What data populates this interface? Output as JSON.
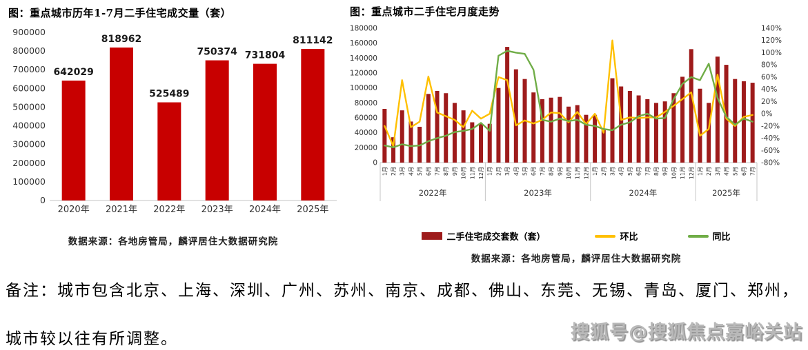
{
  "note": {
    "line1": "备注：城市包含北京、上海、深圳、广州、苏州、南京、成都、佛山、东莞、无锡、青岛、厦门、郑州，",
    "line2": "城市较以往有所调整。"
  },
  "watermark": "搜狐号@搜狐焦点嘉峪关站",
  "chart_data": [
    {
      "type": "bar",
      "title": "图：重点城市历年1-7月二手住宅成交量（套）",
      "source": "数据来源：各地房管局，麟评居住大数据研究院",
      "categories": [
        "2020年",
        "2021年",
        "2022年",
        "2023年",
        "2024年",
        "2025年"
      ],
      "values": [
        642029,
        818962,
        525489,
        750374,
        731804,
        811142
      ],
      "value_labels": true,
      "grid": false,
      "xlabel": "",
      "ylabel": "",
      "ylim": [
        0,
        900000
      ],
      "ytick_step": 100000,
      "bar_color": "#C80000"
    },
    {
      "type": "combo",
      "title": "图：重点城市二手住宅月度走势",
      "source": "数据来源：各地房管局，麟评居住大数据研究院",
      "legend_position": "bottom",
      "grid": false,
      "year_groups": [
        {
          "label": "2022年",
          "count": 12
        },
        {
          "label": "2023年",
          "count": 12
        },
        {
          "label": "2024年",
          "count": 12
        },
        {
          "label": "2025年",
          "count": 7
        }
      ],
      "categories": [
        "1月",
        "2月",
        "3月",
        "4月",
        "5月",
        "6月",
        "7月",
        "8月",
        "9月",
        "10月",
        "11月",
        "12月",
        "1月",
        "2月",
        "3月",
        "4月",
        "5月",
        "6月",
        "7月",
        "8月",
        "9月",
        "10月",
        "11月",
        "12月",
        "1月",
        "2月",
        "3月",
        "4月",
        "5月",
        "6月",
        "7月",
        "8月",
        "9月",
        "10月",
        "11月",
        "12月",
        "1月",
        "2月",
        "3月",
        "4月",
        "5月",
        "6月",
        "7月"
      ],
      "left_axis": {
        "min": 0,
        "max": 180000,
        "step": 20000
      },
      "right_axis": {
        "min": -80,
        "max": 140,
        "step": 20,
        "unit": "%"
      },
      "series": [
        {
          "name": "二手住宅成交套数（套）",
          "type": "bar",
          "axis": "left",
          "color": "#9E1B1B",
          "values": [
            72000,
            34000,
            70000,
            55000,
            48000,
            92000,
            96000,
            93000,
            80000,
            70000,
            54000,
            52000,
            52000,
            100000,
            155000,
            125000,
            112000,
            94000,
            85000,
            87000,
            88000,
            75000,
            77000,
            64000,
            64000,
            44000,
            113000,
            102000,
            96000,
            90000,
            85000,
            80000,
            82000,
            93000,
            115000,
            152000,
            99000,
            80000,
            142000,
            131000,
            112000,
            109000,
            107000
          ]
        },
        {
          "name": "环比",
          "type": "line",
          "axis": "right",
          "color": "#FFC000",
          "values": [
            -20,
            -53,
            55,
            -22,
            -13,
            61,
            2,
            -4,
            -10,
            -22,
            5,
            -8,
            0,
            60,
            55,
            -19,
            -11,
            -16,
            -10,
            2,
            1,
            -14,
            3,
            -17,
            0,
            -31,
            120,
            -10,
            -6,
            -7,
            -6,
            -6,
            3,
            13,
            24,
            35,
            -36,
            -25,
            64,
            -8,
            -20,
            -5,
            -2
          ]
        },
        {
          "name": "同比",
          "type": "line",
          "axis": "right",
          "color": "#70AD47",
          "values": [
            -52,
            -55,
            -50,
            -53,
            -52,
            -45,
            -40,
            -36,
            -30,
            -28,
            -25,
            -15,
            -28,
            95,
            103,
            100,
            98,
            72,
            -10,
            -13,
            -8,
            -12,
            -10,
            -18,
            -20,
            -25,
            -27,
            -18,
            -14,
            -4,
            0,
            -8,
            -7,
            24,
            49,
            60,
            55,
            82,
            26,
            -5,
            -18,
            -8,
            -13
          ]
        }
      ]
    }
  ]
}
